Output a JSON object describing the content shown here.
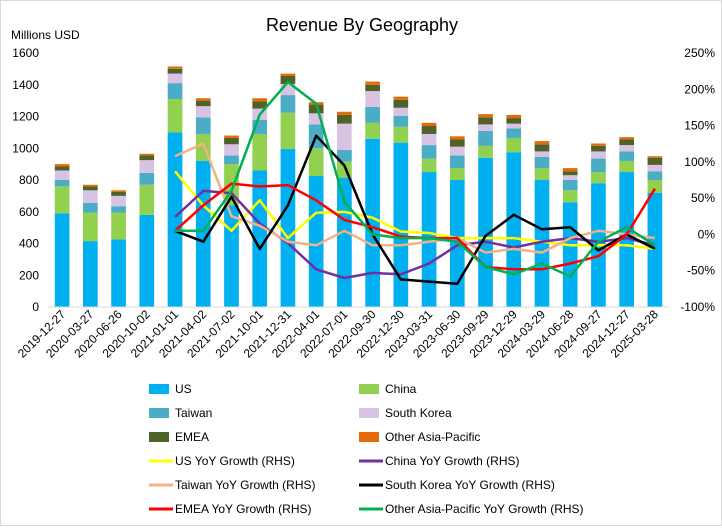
{
  "chart_data": {
    "type": "bar",
    "title": "Revenue By Geography",
    "ylabel": "Millions USD",
    "ylim": [
      0,
      1600
    ],
    "yticks": [
      0,
      200,
      400,
      600,
      800,
      1000,
      1200,
      1400,
      1600
    ],
    "y2lim": [
      -100,
      250
    ],
    "y2ticks": [
      -100,
      -50,
      0,
      50,
      100,
      150,
      200,
      250
    ],
    "y2tick_labels": [
      "-100%",
      "-50%",
      "0%",
      "50%",
      "100%",
      "150%",
      "200%",
      "250%"
    ],
    "grid": false,
    "legend_position": "bottom",
    "categories": [
      "2019-12-27",
      "2020-03-27",
      "2020-06-26",
      "2020-10-02",
      "2021-01-01",
      "2021-04-02",
      "2021-07-02",
      "2021-10-01",
      "2021-12-31",
      "2022-04-01",
      "2022-07-01",
      "2022-09-30",
      "2022-12-30",
      "2023-03-31",
      "2023-06-30",
      "2023-09-29",
      "2023-12-29",
      "2024-03-29",
      "2024-06-28",
      "2024-09-27",
      "2024-12-27",
      "2025-03-28"
    ],
    "bar_series": [
      {
        "name": "US",
        "color": "#00B0F0",
        "values": [
          590,
          415,
          425,
          580,
          1100,
          920,
          640,
          860,
          995,
          825,
          815,
          1060,
          1035,
          850,
          800,
          940,
          975,
          800,
          660,
          780,
          850,
          720
        ]
      },
      {
        "name": "China",
        "color": "#92D050",
        "values": [
          170,
          180,
          170,
          190,
          210,
          170,
          260,
          230,
          230,
          175,
          100,
          100,
          100,
          85,
          75,
          75,
          90,
          75,
          75,
          70,
          70,
          80
        ]
      },
      {
        "name": "Taiwan",
        "color": "#4BACC6",
        "values": [
          40,
          60,
          40,
          75,
          100,
          105,
          55,
          90,
          110,
          150,
          75,
          100,
          70,
          85,
          80,
          95,
          60,
          70,
          65,
          85,
          60,
          55
        ]
      },
      {
        "name": "South Korea",
        "color": "#D9C3E5",
        "values": [
          60,
          80,
          65,
          80,
          60,
          70,
          70,
          70,
          70,
          70,
          165,
          100,
          50,
          70,
          55,
          40,
          30,
          35,
          30,
          45,
          40,
          40
        ]
      },
      {
        "name": "EMEA",
        "color": "#4F6228",
        "values": [
          25,
          25,
          25,
          30,
          30,
          35,
          40,
          45,
          50,
          55,
          55,
          40,
          50,
          50,
          45,
          45,
          35,
          45,
          25,
          35,
          35,
          45
        ]
      },
      {
        "name": "Other Asia-Pacific",
        "color": "#E36C09",
        "values": [
          15,
          10,
          10,
          10,
          15,
          15,
          15,
          20,
          15,
          15,
          20,
          20,
          20,
          20,
          20,
          20,
          20,
          20,
          20,
          15,
          15,
          10
        ]
      }
    ],
    "line_series": [
      {
        "name": "US YoY Growth (RHS)",
        "color": "#FFFF00",
        "start_index": 4,
        "values": [
          87,
          40,
          5,
          47,
          -5,
          30,
          31,
          23,
          4,
          2,
          -5,
          -5,
          -5,
          -10,
          -15,
          -15,
          -15,
          -20
        ]
      },
      {
        "name": "China YoY Growth (RHS)",
        "color": "#7030A0",
        "start_index": 4,
        "values": [
          24,
          60,
          57,
          15,
          -12,
          -48,
          -60,
          -53,
          -55,
          -40,
          -15,
          -10,
          -18,
          -10,
          -5,
          -10,
          -5,
          -15
        ]
      },
      {
        "name": "Taiwan YoY Growth (RHS)",
        "color": "#F4B183",
        "start_index": 4,
        "values": [
          108,
          125,
          25,
          12,
          -10,
          -15,
          5,
          -15,
          -15,
          -10,
          -5,
          -25,
          -20,
          -25,
          -5,
          5,
          0,
          -5
        ]
      },
      {
        "name": "South Korea YoY Growth (RHS)",
        "color": "#000000",
        "start_index": 4,
        "values": [
          5,
          -10,
          52,
          -20,
          40,
          136,
          95,
          0,
          -62,
          -65,
          -68,
          -2,
          27,
          7,
          10,
          -22,
          0,
          -20
        ]
      },
      {
        "name": "EMEA YoY Growth (RHS)",
        "color": "#FF0000",
        "start_index": 4,
        "values": [
          5,
          40,
          70,
          66,
          68,
          47,
          20,
          10,
          -3,
          -5,
          -5,
          -45,
          -48,
          -48,
          -40,
          -30,
          0,
          63
        ]
      },
      {
        "name": "Other Asia-Pacific YoY Growth (RHS)",
        "color": "#00B050",
        "start_index": 4,
        "values": [
          5,
          5,
          60,
          165,
          210,
          180,
          45,
          0,
          -5,
          -5,
          -10,
          -45,
          -55,
          -40,
          -58,
          -10,
          10,
          -15
        ]
      }
    ]
  }
}
